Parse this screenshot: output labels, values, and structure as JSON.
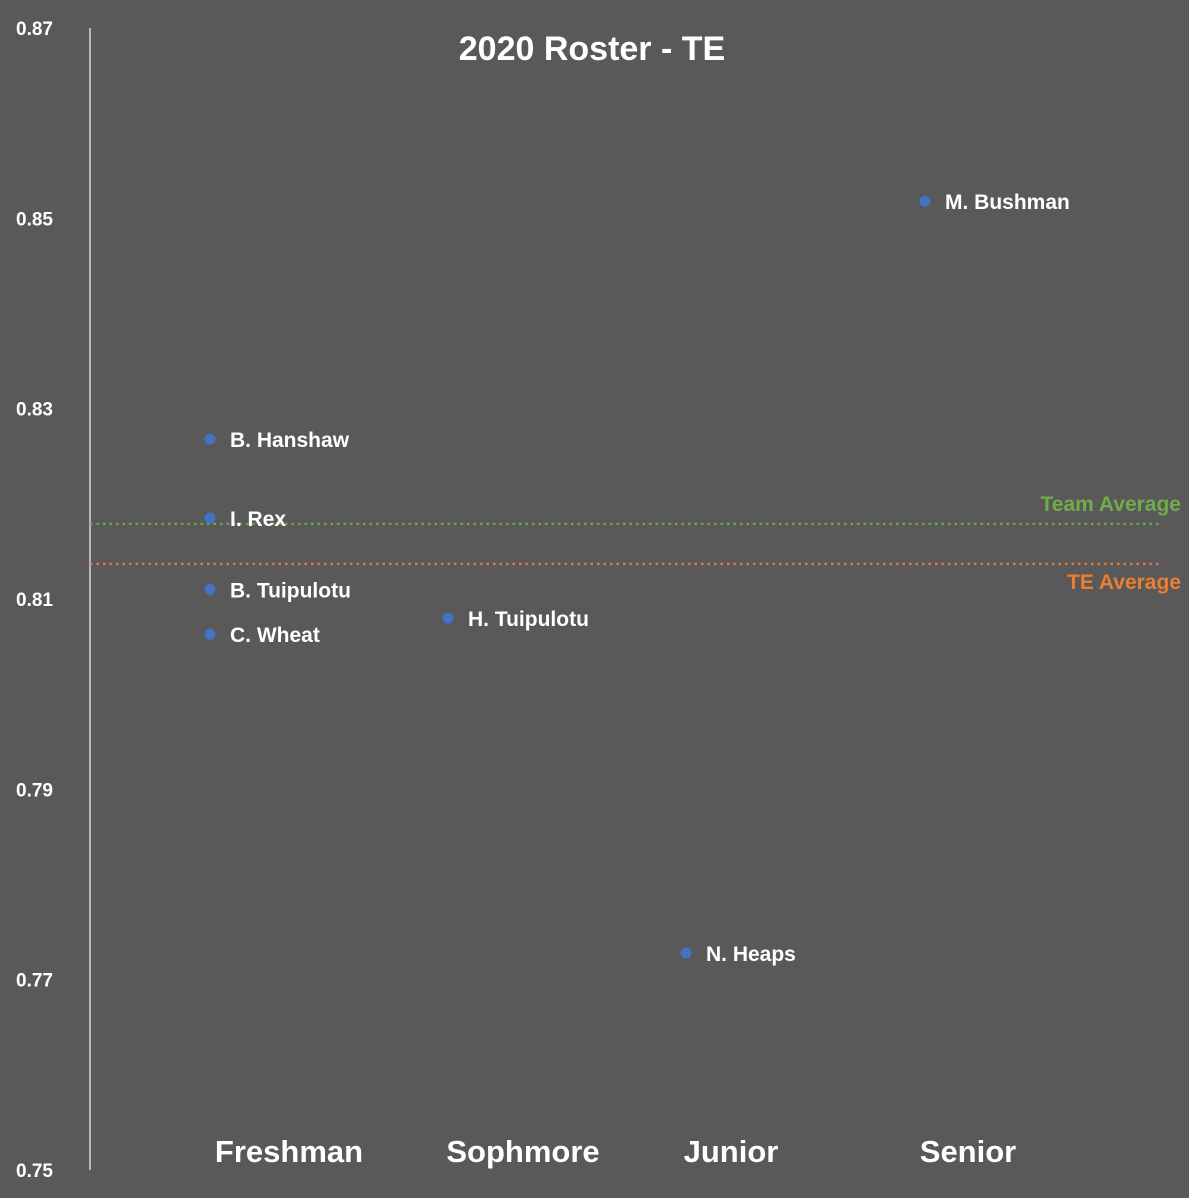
{
  "chart_data": {
    "type": "scatter",
    "title": "2020 Roster - TE",
    "xlabel": "",
    "ylabel": "",
    "categories": [
      "Freshman",
      "Sophmore",
      "Junior",
      "Senior"
    ],
    "ylim": [
      0.75,
      0.87
    ],
    "yticks": [
      "0.87",
      "0.85",
      "0.83",
      "0.81",
      "0.79",
      "0.77",
      "0.75"
    ],
    "grid": false,
    "series": [
      {
        "color": "#4472c4",
        "points": [
          {
            "label": "B. Hanshaw",
            "category": "Freshman",
            "y": 0.8268
          },
          {
            "label": "I. Rex",
            "category": "Freshman",
            "y": 0.8185
          },
          {
            "label": "B. Tuipulotu",
            "category": "Freshman",
            "y": 0.811
          },
          {
            "label": "C. Wheat",
            "category": "Freshman",
            "y": 0.8063
          },
          {
            "label": "H. Tuipulotu",
            "category": "Sophmore",
            "y": 0.808
          },
          {
            "label": "N. Heaps",
            "category": "Junior",
            "y": 0.7728
          },
          {
            "label": "M. Bushman",
            "category": "Senior",
            "y": 0.8518
          }
        ]
      }
    ],
    "reference_lines": [
      {
        "label": "Team Average",
        "y": 0.8179,
        "color": "#70ad47"
      },
      {
        "label": "TE Average",
        "y": 0.8137,
        "color": "#ed7d31"
      }
    ]
  }
}
